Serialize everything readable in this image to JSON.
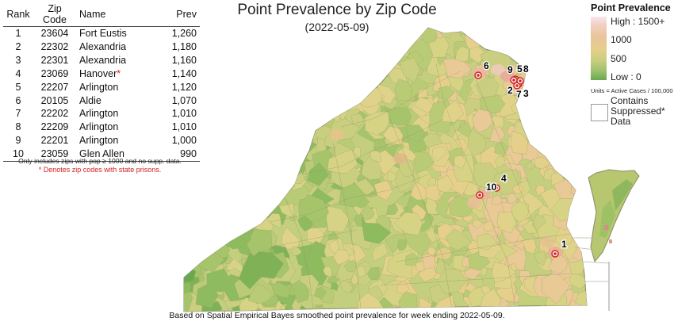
{
  "title": "Point Prevalence by Zip Code",
  "subtitle": "(2022-05-09)",
  "table": {
    "headers": {
      "rank": "Rank",
      "zip": "Zip Code",
      "name": "Name",
      "prev": "Prev"
    },
    "rows": [
      {
        "rank": "1",
        "zip": "23604",
        "name": "Fort Eustis",
        "prev": "1,260",
        "prison": false
      },
      {
        "rank": "2",
        "zip": "22302",
        "name": "Alexandria",
        "prev": "1,180",
        "prison": false
      },
      {
        "rank": "3",
        "zip": "22301",
        "name": "Alexandria",
        "prev": "1,160",
        "prison": false
      },
      {
        "rank": "4",
        "zip": "23069",
        "name": "Hanover",
        "prev": "1,140",
        "prison": true
      },
      {
        "rank": "5",
        "zip": "22207",
        "name": "Arlington",
        "prev": "1,120",
        "prison": false
      },
      {
        "rank": "6",
        "zip": "20105",
        "name": "Aldie",
        "prev": "1,070",
        "prison": false
      },
      {
        "rank": "7",
        "zip": "22202",
        "name": "Arlington",
        "prev": "1,010",
        "prison": false
      },
      {
        "rank": "8",
        "zip": "22209",
        "name": "Arlington",
        "prev": "1,010",
        "prison": false
      },
      {
        "rank": "9",
        "zip": "22201",
        "name": "Arlington",
        "prev": "1,000",
        "prison": false
      },
      {
        "rank": "10",
        "zip": "23059",
        "name": "Glen Allen",
        "prev": "990",
        "prison": false
      }
    ],
    "prison_mark": "*",
    "note_line1": "Only includes zips with pop ≥ 1000 and no supp. data.",
    "note_line2": "* Denotes zip codes with state prisons."
  },
  "legend": {
    "title": "Point Prevalence",
    "high": "High : 1500+",
    "mid1": "1000",
    "mid2": "500",
    "low": "Low : 0",
    "units": "Units = Active Cases / 100,000",
    "suppressed": "Contains Suppressed* Data",
    "colors": {
      "high": "#f7e4ee",
      "mid": "#e6cf8a",
      "low": "#6aa84f",
      "marker": "#d62020"
    }
  },
  "footer": "Based on Spatial Empirical Bayes smoothed point prevalence for week ending 2022-05-09.",
  "markers": [
    "1",
    "2",
    "3",
    "4",
    "5",
    "6",
    "7",
    "8",
    "9",
    "10"
  ]
}
